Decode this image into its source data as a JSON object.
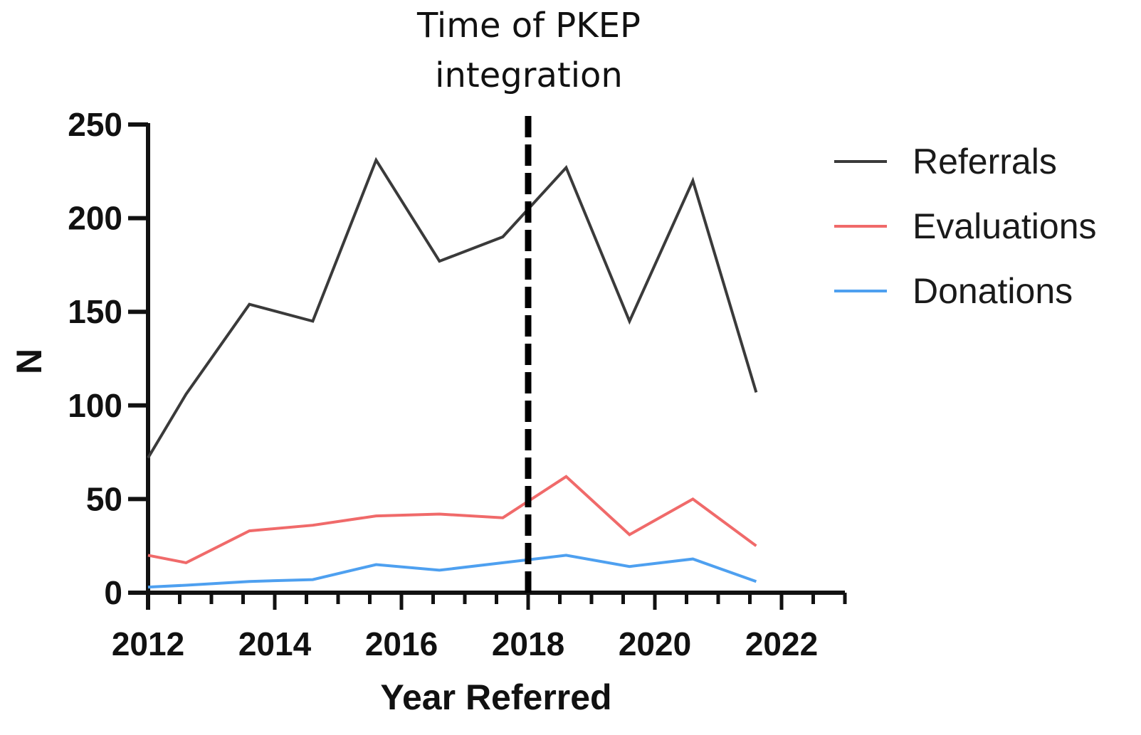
{
  "chart_data": {
    "type": "line",
    "xlabel": "Year Referred",
    "ylabel": "N",
    "xlim": [
      2012,
      2023
    ],
    "ylim": [
      0,
      250
    ],
    "x_ticks": [
      "2012",
      "2014",
      "2016",
      "2018",
      "2020",
      "2022"
    ],
    "y_ticks": [
      "0",
      "50",
      "100",
      "150",
      "200",
      "250"
    ],
    "x": [
      2012,
      2012.6,
      2013.6,
      2014.6,
      2015.6,
      2016.6,
      2017.6,
      2018.6,
      2019.6,
      2020.6,
      2021.6
    ],
    "series": [
      {
        "name": "Referrals",
        "color": "#3a3a3a",
        "values": [
          72,
          106,
          154,
          145,
          231,
          177,
          190,
          227,
          145,
          220,
          107
        ]
      },
      {
        "name": "Evaluations",
        "color": "#f06a6a",
        "values": [
          20,
          16,
          33,
          36,
          41,
          42,
          40,
          62,
          31,
          50,
          25
        ]
      },
      {
        "name": "Donations",
        "color": "#4ea0f0",
        "values": [
          3,
          4,
          6,
          7,
          15,
          12,
          16,
          20,
          14,
          18,
          6
        ]
      }
    ],
    "annotation": {
      "text_line1": "Time of PKEP",
      "text_line2": "integration",
      "x": 2018,
      "style": "dashed-vertical-line"
    },
    "legend_position": "right",
    "grid": false
  }
}
